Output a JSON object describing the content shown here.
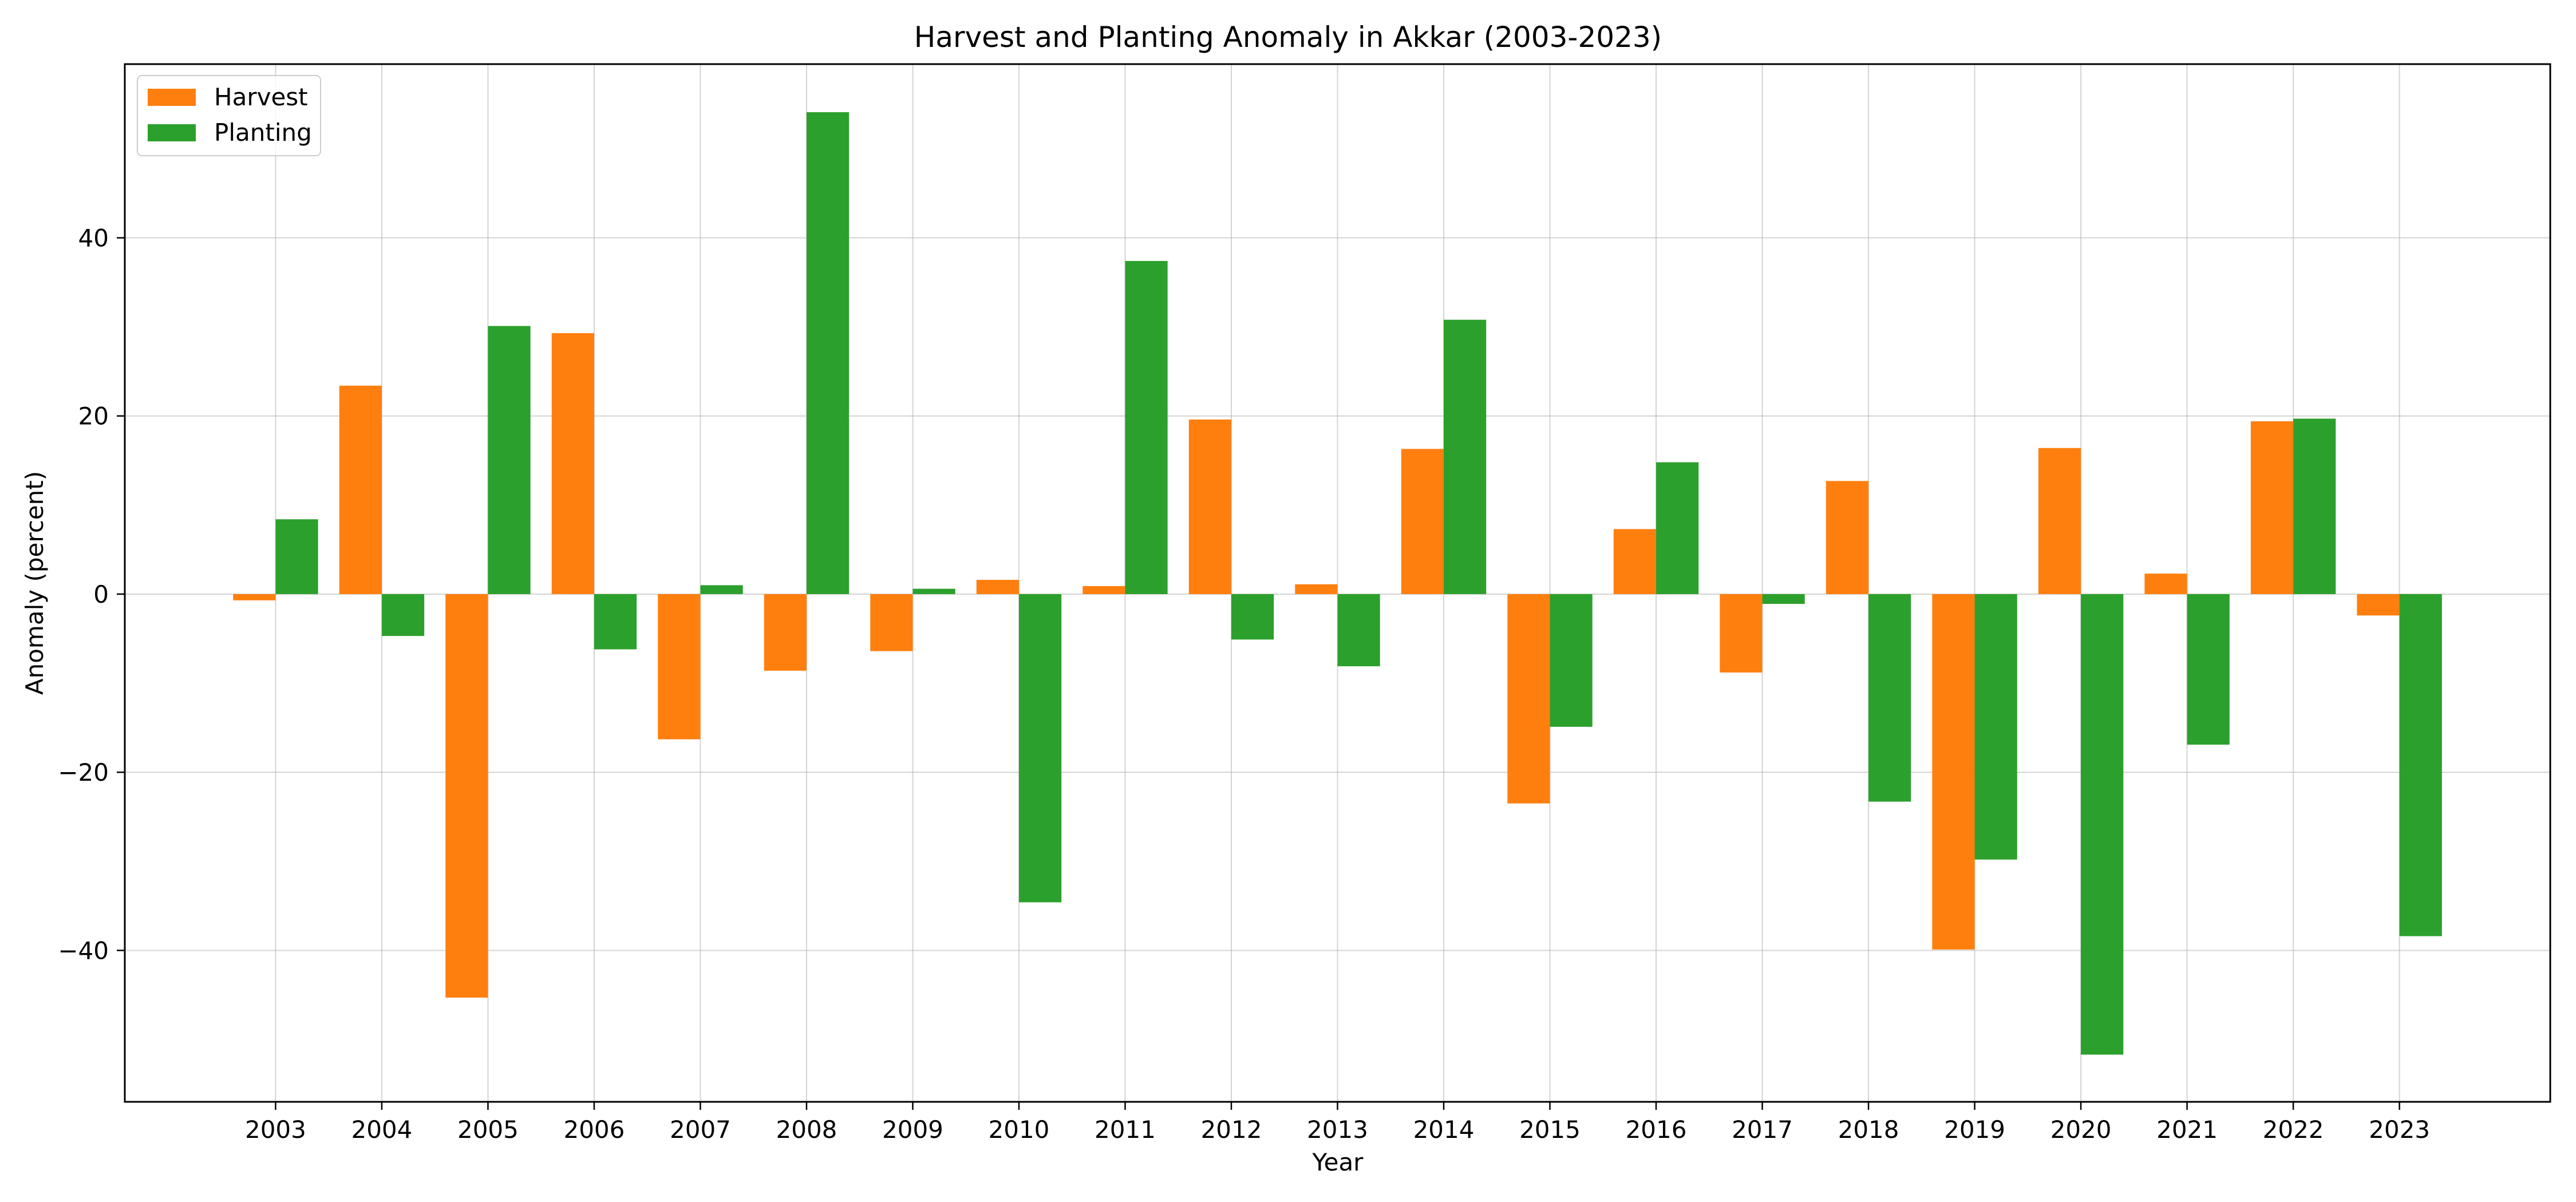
{
  "chart_data": {
    "type": "bar",
    "title": "Harvest and Planting Anomaly in Akkar (2003-2023)",
    "xlabel": "Year",
    "ylabel": "Anomaly (percent)",
    "categories": [
      "2003",
      "2004",
      "2005",
      "2006",
      "2007",
      "2008",
      "2009",
      "2010",
      "2011",
      "2012",
      "2013",
      "2014",
      "2015",
      "2016",
      "2017",
      "2018",
      "2019",
      "2020",
      "2021",
      "2022",
      "2023"
    ],
    "series": [
      {
        "name": "Harvest",
        "color": "#ff7f0e",
        "values": [
          -0.7,
          23.4,
          -45.3,
          29.3,
          -16.3,
          -8.6,
          -6.4,
          1.6,
          0.9,
          19.6,
          1.1,
          16.3,
          -23.5,
          7.3,
          -8.8,
          12.7,
          -39.9,
          16.4,
          2.3,
          19.4,
          -2.4
        ]
      },
      {
        "name": "Planting",
        "color": "#2ca02c",
        "values": [
          8.4,
          -4.7,
          30.1,
          -6.2,
          1.0,
          54.1,
          0.6,
          -34.6,
          37.4,
          -5.1,
          -8.1,
          30.8,
          -14.9,
          14.8,
          -1.1,
          -23.3,
          -29.8,
          -51.7,
          -16.9,
          19.7,
          -38.4
        ]
      }
    ],
    "yticks": [
      -40,
      -20,
      0,
      20,
      40
    ],
    "ytick_labels": [
      "−40",
      "−20",
      "0",
      "20",
      "40"
    ],
    "ylim": [
      -57.0,
      59.5
    ],
    "grid": true,
    "legend_position": "top-left"
  }
}
